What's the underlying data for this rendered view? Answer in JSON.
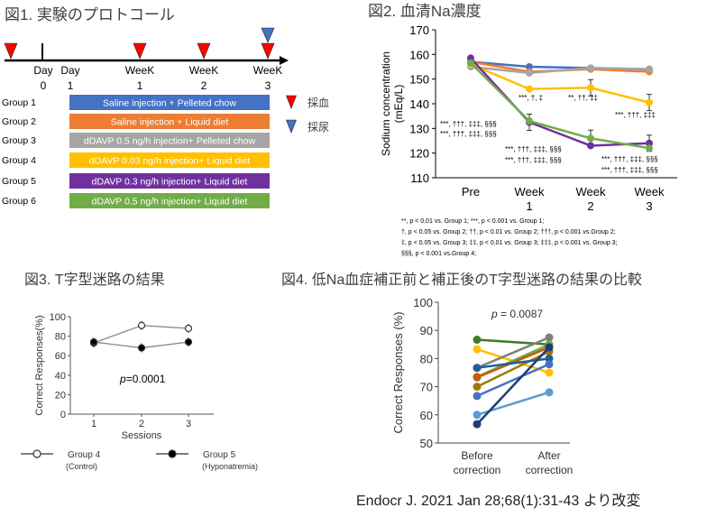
{
  "fig1": {
    "title": "図1. 実験のプロトコール",
    "timeline_labels": [
      [
        "Day",
        "0"
      ],
      [
        "Day",
        "1"
      ],
      [
        "WeeK",
        "1"
      ],
      [
        "WeeK",
        "2"
      ],
      [
        "WeeK",
        "3"
      ]
    ],
    "groups": [
      {
        "label": "Group 1",
        "bar": "Saline injection + Pelleted chow",
        "color": "#4472c4"
      },
      {
        "label": "Group 2",
        "bar": "Saline injection + Liquid diet",
        "color": "#ed7d31"
      },
      {
        "label": "Group 3",
        "bar": "dDAVP 0.5 ng/h injection+ Pelleted chow",
        "color": "#a5a5a5"
      },
      {
        "label": "Group 4",
        "bar": "dDAVP 0.03 ng/h injection+ Liquid diet",
        "color": "#ffc000"
      },
      {
        "label": "Group 5",
        "bar": "dDAVP 0.3 ng/h injection+ Liquid diet",
        "color": "#7030a0"
      },
      {
        "label": "Group 6",
        "bar": "dDAVP 0.5 ng/h injection+ Liquid diet",
        "color": "#70ad47"
      }
    ],
    "legend": [
      {
        "label": "採血",
        "icon": "red-triangle-icon",
        "color": "#ff0000"
      },
      {
        "label": "採尿",
        "icon": "blue-triangle-icon",
        "color": "#4472c4"
      }
    ]
  },
  "chart_data": [
    {
      "type": "line",
      "title": "図2. 血清Na濃度",
      "ylabel": "Sodium concentration (mEq/L)",
      "ylim": [
        110,
        170
      ],
      "yticks": [
        "110",
        "120",
        "130",
        "140",
        "150",
        "160",
        "170"
      ],
      "categories": [
        [
          "Pre",
          ""
        ],
        [
          "Week",
          "1"
        ],
        [
          "Week",
          "2"
        ],
        [
          "Week",
          "3"
        ]
      ],
      "series": [
        {
          "values": [
            157,
            155,
            154.5,
            154
          ],
          "color": "#4472c4"
        },
        {
          "values": [
            157,
            153,
            154,
            153
          ],
          "color": "#ed7d31"
        },
        {
          "values": [
            155,
            152.5,
            154.5,
            154
          ],
          "color": "#a5a5a5"
        },
        {
          "values": [
            156,
            146,
            146.5,
            140.5
          ],
          "color": "#ffc000"
        },
        {
          "values": [
            158.5,
            132.5,
            123,
            124
          ],
          "color": "#7030a0"
        },
        {
          "values": [
            156.5,
            133,
            126,
            122
          ],
          "color": "#70ad47"
        }
      ],
      "annotations": [
        "***, †, ‡",
        "**, ††, ‡‡",
        "***, †††, ‡‡‡",
        "***, †††, ‡‡‡, §§§",
        "***, †††, ‡‡‡, §§§",
        "***, †††, ‡‡‡, §§§",
        "***, †††, ‡‡‡, §§§",
        "***, †††, ‡‡‡, §§§",
        "***, †††, ‡‡‡, §§§"
      ],
      "footnotes": [
        "**, p < 0.01 vs. Group 1; ***, p < 0.001 vs. Group 1;",
        "†, p < 0.05 vs. Group 2; ††, p < 0.01 vs. Group 2; †††, p < 0.001 vs.Group 2;",
        "‡, p < 0.05 vs. Group 3; ‡‡, p < 0.01 vs. Group 3; ‡‡‡, p < 0.001 vs. Group 3;",
        "§§§, p < 0.001 vs.Group 4;"
      ]
    },
    {
      "type": "line",
      "title": "図3. T字型迷路の結果",
      "ylabel": "Correct Responses(%)",
      "xlabel": "Sessions",
      "ylim": [
        0,
        100
      ],
      "yticks": [
        "0",
        "20",
        "40",
        "60",
        "80",
        "100"
      ],
      "categories": [
        "1",
        "2",
        "3"
      ],
      "annotation_p": "p",
      "annotation_val": "=0.0001",
      "series": [
        {
          "name": "Group 4",
          "sub": "(Control)",
          "values": [
            73,
            91,
            88
          ],
          "marker": "open-circle"
        },
        {
          "name": "Group 5",
          "sub": "(Hyponatremia)",
          "values": [
            74,
            68,
            74
          ],
          "marker": "filled-circle"
        }
      ]
    },
    {
      "type": "line",
      "title": "図4. 低Na血症補正前と補正後のT字型迷路の結果の比較",
      "ylabel": "Correct Responses (%)",
      "ylim": [
        50,
        100
      ],
      "yticks": [
        "50",
        "60",
        "70",
        "80",
        "90",
        "100"
      ],
      "categories": [
        [
          "Before",
          "correction"
        ],
        [
          "After",
          "correction"
        ]
      ],
      "annotation_p": "p",
      "annotation_val": " = 0.0087",
      "series": [
        {
          "values": [
            86.7,
            85
          ],
          "color": "#3f7a2a"
        },
        {
          "values": [
            83.3,
            75
          ],
          "color": "#ffc000"
        },
        {
          "values": [
            76.7,
            87.5
          ],
          "color": "#7f7f7f"
        },
        {
          "values": [
            73.5,
            85
          ],
          "color": "#70ad47"
        },
        {
          "values": [
            73.3,
            84
          ],
          "color": "#c55a11"
        },
        {
          "values": [
            70,
            82.5
          ],
          "color": "#9c7a0a"
        },
        {
          "values": [
            76.7,
            80
          ],
          "color": "#1f5f99"
        },
        {
          "values": [
            66.7,
            78
          ],
          "color": "#4472c4"
        },
        {
          "values": [
            60,
            68
          ],
          "color": "#5b9bd5"
        },
        {
          "values": [
            56.7,
            84
          ],
          "color": "#1f3c74"
        }
      ]
    }
  ],
  "citation": "Endocr J. 2021 Jan 28;68(1):31-43 より改変"
}
